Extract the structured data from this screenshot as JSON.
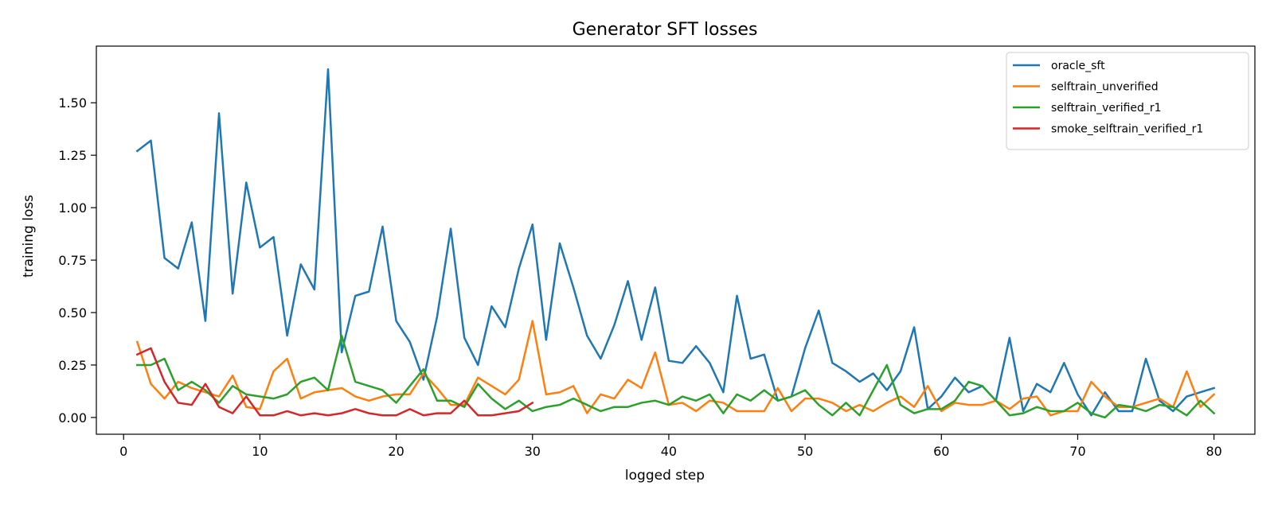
{
  "chart_data": {
    "type": "line",
    "title": "Generator SFT losses",
    "xlabel": "logged step",
    "ylabel": "training loss",
    "xlim": [
      -2,
      83
    ],
    "ylim": [
      -0.08,
      1.77
    ],
    "xticks": [
      0,
      10,
      20,
      30,
      40,
      50,
      60,
      70,
      80
    ],
    "yticks": [
      0.0,
      0.25,
      0.5,
      0.75,
      1.0,
      1.25,
      1.5
    ],
    "ytick_labels": [
      "0.00",
      "0.25",
      "0.50",
      "0.75",
      "1.00",
      "1.25",
      "1.50"
    ],
    "grid": false,
    "legend_position": "top-right",
    "series": [
      {
        "name": "oracle_sft",
        "color": "#1f77b4",
        "x": [
          1,
          2,
          3,
          4,
          5,
          6,
          7,
          8,
          9,
          10,
          11,
          12,
          13,
          14,
          15,
          16,
          17,
          18,
          19,
          20,
          21,
          22,
          23,
          24,
          25,
          26,
          27,
          28,
          29,
          30,
          31,
          32,
          33,
          34,
          35,
          36,
          37,
          38,
          39,
          40,
          41,
          42,
          43,
          44,
          45,
          46,
          47,
          48,
          49,
          50,
          51,
          52,
          53,
          54,
          55,
          56,
          57,
          58,
          59,
          60,
          61,
          62,
          63,
          64,
          65,
          66,
          67,
          68,
          69,
          70,
          71,
          72,
          73,
          74,
          75,
          76,
          77,
          78,
          79,
          80
        ],
        "values": [
          1.27,
          1.32,
          0.76,
          0.71,
          0.93,
          0.46,
          1.45,
          0.59,
          1.12,
          0.81,
          0.86,
          0.39,
          0.73,
          0.61,
          1.66,
          0.31,
          0.58,
          0.6,
          0.91,
          0.46,
          0.36,
          0.18,
          0.48,
          0.9,
          0.38,
          0.25,
          0.53,
          0.43,
          0.71,
          0.92,
          0.37,
          0.83,
          0.62,
          0.39,
          0.28,
          0.44,
          0.65,
          0.37,
          0.62,
          0.27,
          0.26,
          0.34,
          0.26,
          0.12,
          0.58,
          0.28,
          0.3,
          0.08,
          0.1,
          0.33,
          0.51,
          0.26,
          0.22,
          0.17,
          0.21,
          0.13,
          0.22,
          0.43,
          0.04,
          0.1,
          0.19,
          0.12,
          0.15,
          0.08,
          0.38,
          0.03,
          0.16,
          0.12,
          0.26,
          0.11,
          0.01,
          0.12,
          0.03,
          0.03,
          0.28,
          0.08,
          0.03,
          0.1,
          0.12,
          0.14
        ]
      },
      {
        "name": "selftrain_unverified",
        "color": "#ff7f0e",
        "x": [
          1,
          2,
          3,
          4,
          5,
          6,
          7,
          8,
          9,
          10,
          11,
          12,
          13,
          14,
          15,
          16,
          17,
          18,
          19,
          20,
          21,
          22,
          23,
          24,
          25,
          26,
          27,
          28,
          29,
          30,
          31,
          32,
          33,
          34,
          35,
          36,
          37,
          38,
          39,
          40,
          41,
          42,
          43,
          44,
          45,
          46,
          47,
          48,
          49,
          50,
          51,
          52,
          53,
          54,
          55,
          56,
          57,
          58,
          59,
          60,
          61,
          62,
          63,
          64,
          65,
          66,
          67,
          68,
          69,
          70,
          71,
          72,
          73,
          74,
          75,
          76,
          77,
          78,
          79,
          80
        ],
        "values": [
          0.36,
          0.16,
          0.09,
          0.17,
          0.14,
          0.12,
          0.1,
          0.2,
          0.05,
          0.04,
          0.22,
          0.28,
          0.09,
          0.12,
          0.13,
          0.14,
          0.1,
          0.08,
          0.1,
          0.11,
          0.11,
          0.21,
          0.14,
          0.06,
          0.06,
          0.19,
          0.15,
          0.11,
          0.18,
          0.46,
          0.11,
          0.12,
          0.15,
          0.02,
          0.11,
          0.09,
          0.18,
          0.14,
          0.31,
          0.06,
          0.07,
          0.03,
          0.08,
          0.07,
          0.03,
          0.03,
          0.03,
          0.14,
          0.03,
          0.09,
          0.09,
          0.07,
          0.03,
          0.06,
          0.03,
          0.07,
          0.1,
          0.05,
          0.15,
          0.03,
          0.07,
          0.06,
          0.06,
          0.08,
          0.04,
          0.09,
          0.1,
          0.01,
          0.03,
          0.03,
          0.17,
          0.1,
          0.05,
          0.05,
          0.07,
          0.09,
          0.05,
          0.22,
          0.05,
          0.11
        ]
      },
      {
        "name": "selftrain_verified_r1",
        "color": "#2ca02c",
        "x": [
          1,
          2,
          3,
          4,
          5,
          6,
          7,
          8,
          9,
          10,
          11,
          12,
          13,
          14,
          15,
          16,
          17,
          18,
          19,
          20,
          21,
          22,
          23,
          24,
          25,
          26,
          27,
          28,
          29,
          30,
          31,
          32,
          33,
          34,
          35,
          36,
          37,
          38,
          39,
          40,
          41,
          42,
          43,
          44,
          45,
          46,
          47,
          48,
          49,
          50,
          51,
          52,
          53,
          54,
          55,
          56,
          57,
          58,
          59,
          60,
          61,
          62,
          63,
          64,
          65,
          66,
          67,
          68,
          69,
          70,
          71,
          72,
          73,
          74,
          75,
          76,
          77,
          78,
          79,
          80
        ],
        "values": [
          0.25,
          0.25,
          0.28,
          0.13,
          0.17,
          0.13,
          0.07,
          0.15,
          0.11,
          0.1,
          0.09,
          0.11,
          0.17,
          0.19,
          0.13,
          0.39,
          0.17,
          0.15,
          0.13,
          0.07,
          0.15,
          0.23,
          0.08,
          0.08,
          0.05,
          0.16,
          0.09,
          0.04,
          0.08,
          0.03,
          0.05,
          0.06,
          0.09,
          0.06,
          0.03,
          0.05,
          0.05,
          0.07,
          0.08,
          0.06,
          0.1,
          0.08,
          0.11,
          0.02,
          0.11,
          0.08,
          0.13,
          0.08,
          0.1,
          0.13,
          0.06,
          0.01,
          0.07,
          0.01,
          0.13,
          0.25,
          0.06,
          0.02,
          0.04,
          0.04,
          0.08,
          0.17,
          0.15,
          0.08,
          0.01,
          0.02,
          0.05,
          0.03,
          0.03,
          0.07,
          0.02,
          0.0,
          0.06,
          0.05,
          0.03,
          0.06,
          0.05,
          0.01,
          0.08,
          0.02
        ]
      },
      {
        "name": "smoke_selftrain_verified_r1",
        "color": "#d62728",
        "x": [
          1,
          2,
          3,
          4,
          5,
          6,
          7,
          8,
          9,
          10,
          11,
          12,
          13,
          14,
          15,
          16,
          17,
          18,
          19,
          20,
          21,
          22,
          23,
          24,
          25,
          26,
          27,
          28,
          29,
          30
        ],
        "values": [
          0.3,
          0.33,
          0.17,
          0.07,
          0.06,
          0.16,
          0.05,
          0.02,
          0.1,
          0.01,
          0.01,
          0.03,
          0.01,
          0.02,
          0.01,
          0.02,
          0.04,
          0.02,
          0.01,
          0.01,
          0.04,
          0.01,
          0.02,
          0.02,
          0.08,
          0.01,
          0.01,
          0.02,
          0.03,
          0.07
        ]
      }
    ]
  }
}
